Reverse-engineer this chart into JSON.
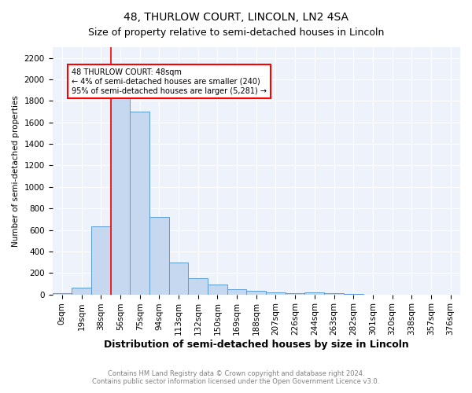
{
  "title": "48, THURLOW COURT, LINCOLN, LN2 4SA",
  "subtitle": "Size of property relative to semi-detached houses in Lincoln",
  "xlabel": "Distribution of semi-detached houses by size in Lincoln",
  "ylabel": "Number of semi-detached properties",
  "bins": [
    "0sqm",
    "19sqm",
    "38sqm",
    "56sqm",
    "75sqm",
    "94sqm",
    "113sqm",
    "132sqm",
    "150sqm",
    "169sqm",
    "188sqm",
    "207sqm",
    "226sqm",
    "244sqm",
    "263sqm",
    "282sqm",
    "301sqm",
    "320sqm",
    "338sqm",
    "357sqm",
    "376sqm"
  ],
  "counts": [
    10,
    62,
    630,
    1850,
    1700,
    720,
    300,
    148,
    90,
    50,
    30,
    18,
    10,
    20,
    10,
    8,
    0,
    0,
    0,
    0,
    0
  ],
  "bar_color": "#c5d8f0",
  "bar_edge_color": "#5b9bd5",
  "red_line_x": 2.5,
  "annotation_text": "48 THURLOW COURT: 48sqm\n← 4% of semi-detached houses are smaller (240)\n95% of semi-detached houses are larger (5,281) →",
  "ylim": [
    0,
    2300
  ],
  "yticks": [
    0,
    200,
    400,
    600,
    800,
    1000,
    1200,
    1400,
    1600,
    1800,
    2000,
    2200
  ],
  "footnote1": "Contains HM Land Registry data © Crown copyright and database right 2024.",
  "footnote2": "Contains public sector information licensed under the Open Government Licence v3.0.",
  "bg_color": "#ffffff",
  "plot_bg_color": "#edf2fb",
  "title_fontsize": 10,
  "subtitle_fontsize": 9,
  "axis_fontsize": 7.5,
  "ylabel_fontsize": 7.5,
  "xlabel_fontsize": 9,
  "annot_fontsize": 7
}
